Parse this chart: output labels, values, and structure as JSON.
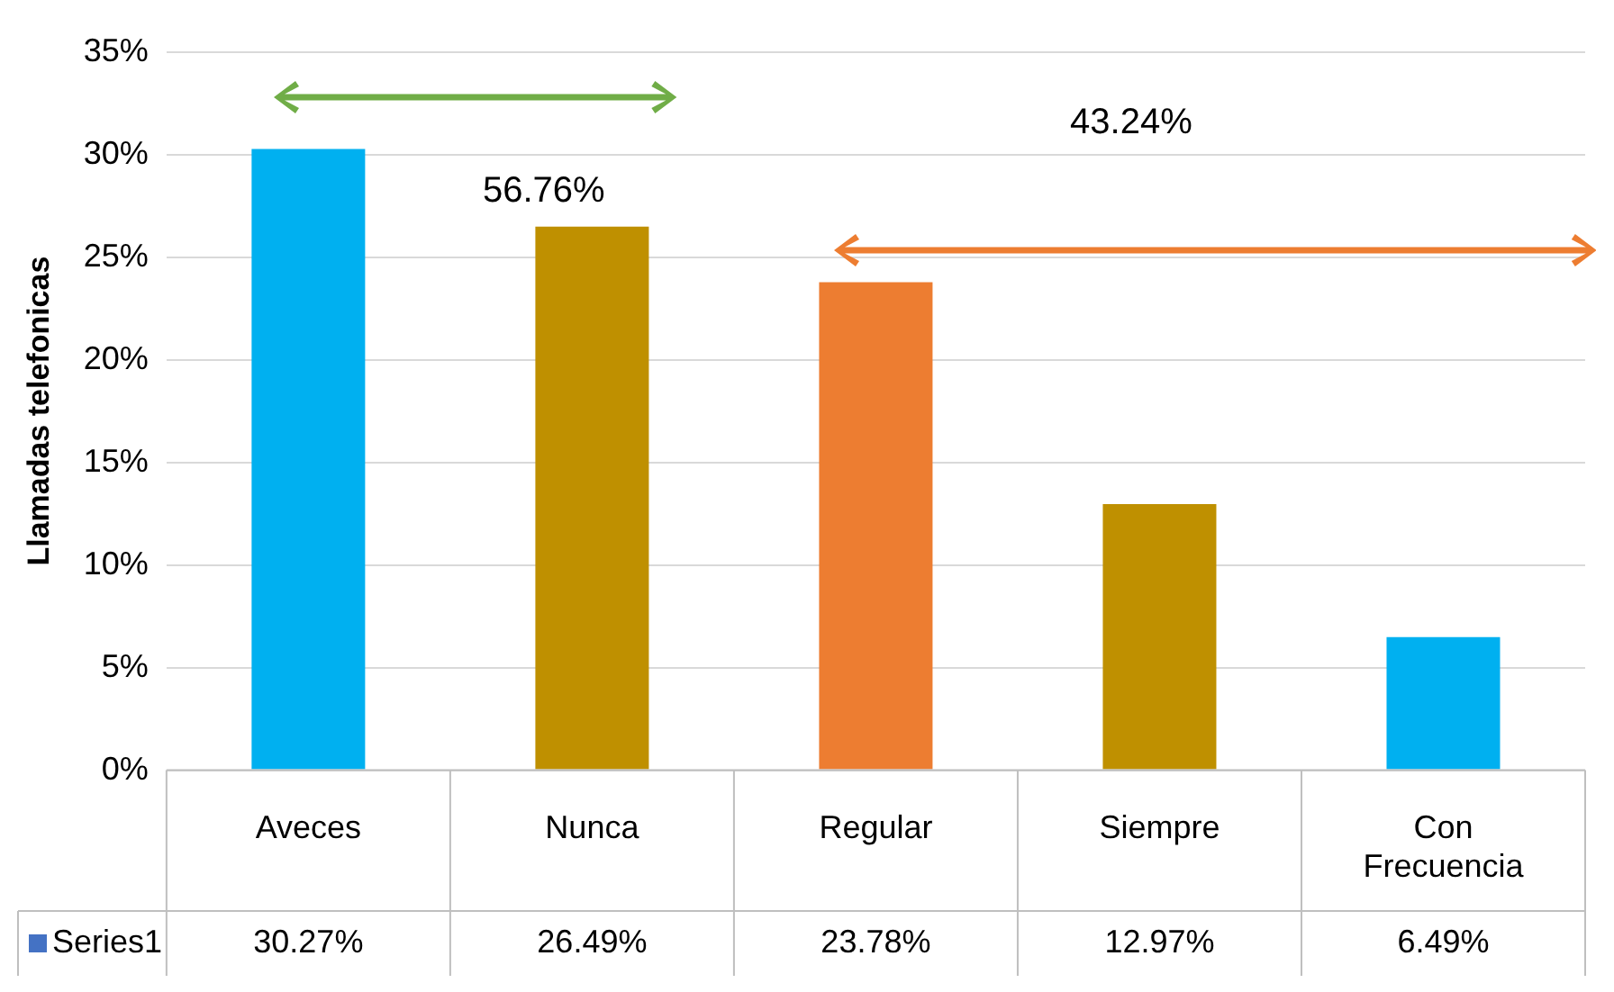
{
  "chart_data": {
    "type": "bar",
    "ylabel": "Llamadas telefonicas",
    "categories": [
      "Aveces",
      "Nunca",
      "Regular",
      "Siempre",
      "Con Frecuencia"
    ],
    "series": [
      {
        "name": "Series1",
        "color": "#4472c4",
        "colors": [
          "#00b0f0",
          "#bf9000",
          "#ed7d31",
          "#bf9000",
          "#00b0f0"
        ],
        "values": [
          30.27,
          26.49,
          23.78,
          12.97,
          6.49
        ]
      }
    ],
    "ylim": [
      0,
      35
    ],
    "yticks": [
      {
        "value": 0,
        "label": "0%"
      },
      {
        "value": 5,
        "label": "5%"
      },
      {
        "value": 10,
        "label": "10%"
      },
      {
        "value": 15,
        "label": "15%"
      },
      {
        "value": 20,
        "label": "20%"
      },
      {
        "value": 25,
        "label": "25%"
      },
      {
        "value": 30,
        "label": "30%"
      },
      {
        "value": 35,
        "label": "35%"
      }
    ],
    "value_labels": [
      "30.27%",
      "26.49%",
      "23.78%",
      "12.97%",
      "6.49%"
    ],
    "annotations": [
      "56.76%",
      "43.24%"
    ],
    "grid": "y",
    "legend": "bottom"
  }
}
